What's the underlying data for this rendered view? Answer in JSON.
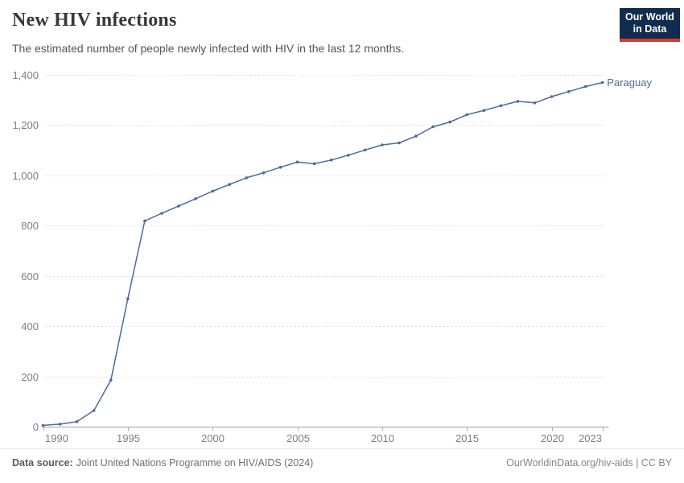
{
  "header": {
    "title": "New HIV infections",
    "subtitle": "The estimated number of people newly infected with HIV in the last 12 months.",
    "logo": {
      "line1": "Our World",
      "line2": "in Data"
    }
  },
  "chart_data": {
    "type": "line",
    "title": "New HIV infections",
    "subtitle": "The estimated number of people newly infected with HIV in the last 12 months.",
    "xlabel": "",
    "ylabel": "",
    "x": [
      1990,
      1991,
      1992,
      1993,
      1994,
      1995,
      1996,
      1997,
      1998,
      1999,
      2000,
      2001,
      2002,
      2003,
      2004,
      2005,
      2006,
      2007,
      2008,
      2009,
      2010,
      2011,
      2012,
      2013,
      2014,
      2015,
      2016,
      2017,
      2018,
      2019,
      2020,
      2021,
      2022,
      2023
    ],
    "series": [
      {
        "name": "Paraguay",
        "color": "#4C6A9C",
        "values": [
          5,
          10,
          20,
          64,
          185,
          508,
          818,
          848,
          877,
          906,
          936,
          963,
          989,
          1009,
          1031,
          1052,
          1045,
          1060,
          1079,
          1100,
          1120,
          1128,
          1155,
          1192,
          1211,
          1240,
          1257,
          1276,
          1293,
          1287,
          1312,
          1332,
          1352,
          1368
        ]
      }
    ],
    "xlim": [
      1990,
      2023
    ],
    "ylim": [
      0,
      1400
    ],
    "grid": "horizontal-dashed",
    "legend_position": "end-of-line-label",
    "yticks": [
      {
        "value": 0,
        "label": "0"
      },
      {
        "value": 200,
        "label": "200"
      },
      {
        "value": 400,
        "label": "400"
      },
      {
        "value": 600,
        "label": "600"
      },
      {
        "value": 800,
        "label": "800"
      },
      {
        "value": 1000,
        "label": "1,000"
      },
      {
        "value": 1200,
        "label": "1,200"
      },
      {
        "value": 1400,
        "label": "1,400"
      }
    ],
    "xticks": [
      {
        "value": 1990,
        "label": "1990"
      },
      {
        "value": 1995,
        "label": "1995"
      },
      {
        "value": 2000,
        "label": "2000"
      },
      {
        "value": 2005,
        "label": "2005"
      },
      {
        "value": 2010,
        "label": "2010"
      },
      {
        "value": 2015,
        "label": "2015"
      },
      {
        "value": 2020,
        "label": "2020"
      },
      {
        "value": 2023,
        "label": "2023"
      }
    ]
  },
  "footer": {
    "datasource_label": "Data source:",
    "datasource_value": "Joint United Nations Programme on HIV/AIDS (2024)",
    "link": "OurWorldinData.org/hiv-aids",
    "separator": " | ",
    "license": "CC BY"
  },
  "colors": {
    "line": "#4C6A9C",
    "grid": "#dddddd",
    "axis": "#a1a1a1",
    "tick_text": "#7e7e7e",
    "logo_bg": "#102d50",
    "logo_red": "#d43a2a"
  }
}
